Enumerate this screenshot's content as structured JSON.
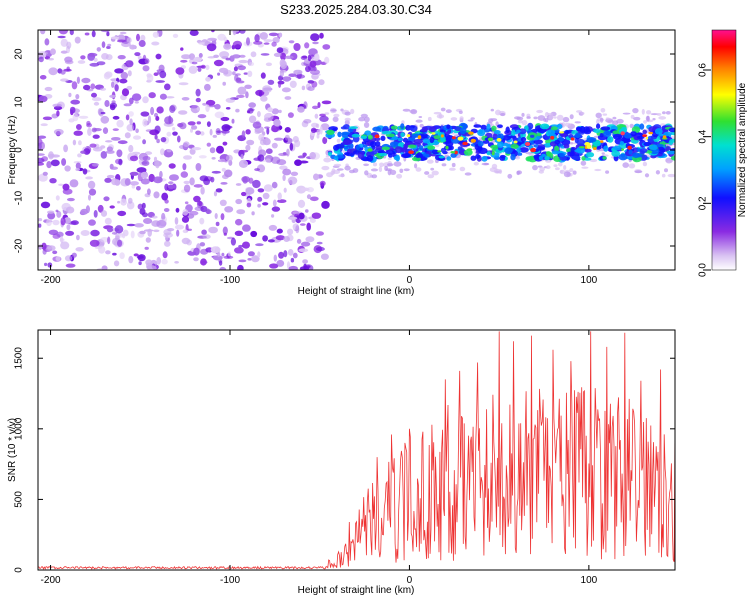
{
  "title": "S233.2025.284.03.30.C34",
  "chart_data": [
    {
      "type": "heatmap",
      "name": "spectrogram",
      "xlabel": "Height of straight line (km)",
      "ylabel": "Frequency (Hz)",
      "xlim": [
        -207,
        148
      ],
      "ylim": [
        -25,
        25
      ],
      "xticks": [
        -200,
        -100,
        0,
        100
      ],
      "yticks": [
        -20,
        -10,
        0,
        10,
        20
      ],
      "noise_region": {
        "x_range": [
          -207,
          -46
        ],
        "y_range": [
          -25,
          25
        ],
        "color": "violet"
      },
      "signal_band": {
        "x_range": [
          -47,
          148
        ],
        "center_hz": 1.5,
        "half_width_hz": 3.5,
        "peak_amplitude": 0.7
      },
      "colorbar": {
        "label": "Normalized spectral amplitude",
        "range": [
          0,
          0.72
        ],
        "ticks": [
          "0.0",
          "0.2",
          "0.4",
          "0.6"
        ],
        "tick_values": [
          0,
          0.2,
          0.4,
          0.6
        ]
      }
    },
    {
      "type": "line",
      "name": "snr",
      "xlabel": "Height of straight line (km)",
      "ylabel": "SNR (10 * v/v)",
      "xlim": [
        -207,
        148
      ],
      "ylim": [
        0,
        1700
      ],
      "xticks": [
        -200,
        -100,
        0,
        100
      ],
      "yticks": [
        0,
        500,
        1000,
        1500
      ],
      "color": "#ee3333",
      "series": [
        {
          "name": "SNR",
          "x": [
            -207,
            -100,
            -50,
            -40,
            -35,
            -30,
            -25,
            -20,
            -15,
            -10,
            -5,
            0,
            5,
            10,
            15,
            20,
            30,
            40,
            50,
            60,
            70,
            80,
            90,
            100,
            110,
            120,
            130,
            140,
            148
          ],
          "y": [
            15,
            15,
            15,
            60,
            150,
            250,
            350,
            330,
            380,
            420,
            460,
            500,
            520,
            540,
            560,
            620,
            650,
            660,
            680,
            650,
            690,
            650,
            680,
            700,
            690,
            640,
            660,
            600,
            580
          ]
        }
      ],
      "peaks": {
        "x": [
          -30,
          -18,
          -10,
          0,
          20,
          28,
          38,
          50,
          58,
          68,
          80,
          90,
          101,
          110,
          120,
          129,
          140
        ],
        "y": [
          330,
          800,
          960,
          1000,
          1350,
          1410,
          1470,
          1690,
          1620,
          1660,
          1560,
          1480,
          1690,
          1580,
          1680,
          1340,
          1420
        ]
      }
    }
  ]
}
